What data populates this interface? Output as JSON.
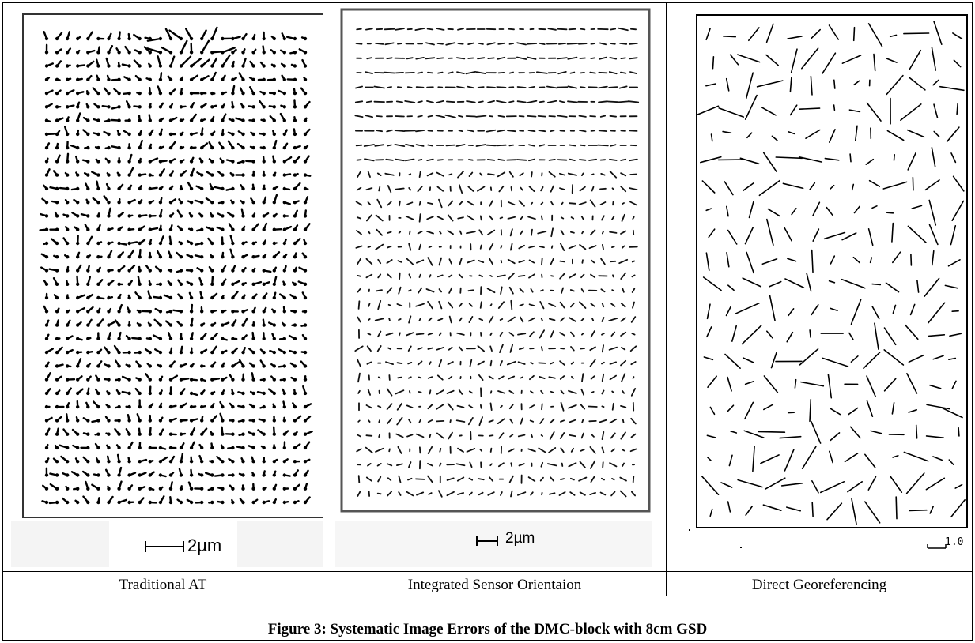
{
  "panels": [
    {
      "id": "traditional-at",
      "label": "Traditional AT",
      "scale_label": "2µm"
    },
    {
      "id": "integrated-sensor-orientation",
      "label": "Integrated Sensor Orientaion",
      "scale_label": "2µm"
    },
    {
      "id": "direct-georeferencing",
      "label": "Direct Georeferencing",
      "scale_label": "1.0"
    }
  ],
  "caption": "Figure 3: Systematic Image Errors of the DMC-block with 8cm GSD"
}
